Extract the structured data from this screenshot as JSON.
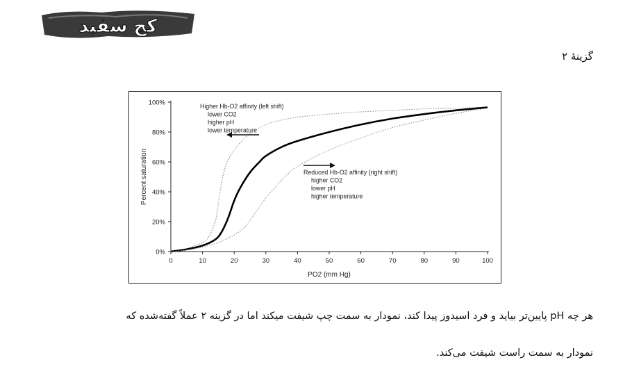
{
  "logo": {
    "text": "کچ سفید"
  },
  "option_label": "گزینۀ ۲",
  "explanation": {
    "line1": "هر چه pH پایین‌تر بیاید و فرد اسیدوز پیدا کند، نمودار به سمت چپ شیفت میکند اما در گزینه ۲ عملاً گفته‌شده که",
    "line2": "نمودار به سمت راست شیفت می‌کند."
  },
  "chart_data": {
    "type": "line",
    "xlabel": "PO2 (mm Hg)",
    "ylabel": "Percent saturation",
    "xlim": [
      0,
      100
    ],
    "ylim": [
      0,
      100
    ],
    "x_ticks": [
      "0",
      "10",
      "20",
      "30",
      "40",
      "50",
      "60",
      "70",
      "80",
      "90",
      "100"
    ],
    "y_ticks": [
      "0%",
      "20%",
      "40%",
      "60%",
      "80%",
      "100%"
    ],
    "series": [
      {
        "style": "dotted",
        "color": "#999999",
        "x": [
          0,
          5,
          10,
          12,
          14,
          15,
          16,
          17,
          18,
          20,
          22,
          25,
          30,
          35,
          40,
          50,
          60,
          70,
          80,
          90,
          100
        ],
        "y": [
          0,
          2,
          6,
          10,
          20,
          32,
          46,
          55,
          61,
          68,
          73,
          79,
          85,
          88,
          90,
          92,
          93.5,
          94.5,
          95.5,
          96,
          96.5
        ]
      },
      {
        "style": "solid",
        "color": "#000000",
        "x": [
          0,
          5,
          10,
          14,
          16,
          18,
          20,
          22,
          25,
          28,
          30,
          35,
          40,
          50,
          60,
          70,
          80,
          90,
          100
        ],
        "y": [
          0,
          1.5,
          4,
          8,
          13,
          22,
          34,
          43,
          53,
          60,
          64,
          70,
          74,
          80,
          85,
          89,
          92,
          94.5,
          96.5
        ]
      },
      {
        "style": "dotted",
        "color": "#999999",
        "x": [
          0,
          5,
          10,
          15,
          18,
          20,
          22,
          24,
          26,
          28,
          30,
          33,
          36,
          40,
          50,
          60,
          70,
          80,
          90,
          100
        ],
        "y": [
          0,
          1,
          3,
          6,
          9,
          11,
          14,
          18,
          24,
          30,
          36,
          43,
          50,
          57,
          68,
          76,
          83,
          88,
          92.5,
          96
        ]
      }
    ],
    "annotations": {
      "left_shift": {
        "title": "Higher Hb-O2 affinity (left shift)",
        "lines": [
          "lower CO2",
          "higher pH",
          "lower temperature"
        ]
      },
      "right_shift": {
        "title": "Reduced Hb-O2 affinity (right shift)",
        "lines": [
          "higher CO2",
          "lower pH",
          "higher temperature"
        ]
      }
    }
  }
}
